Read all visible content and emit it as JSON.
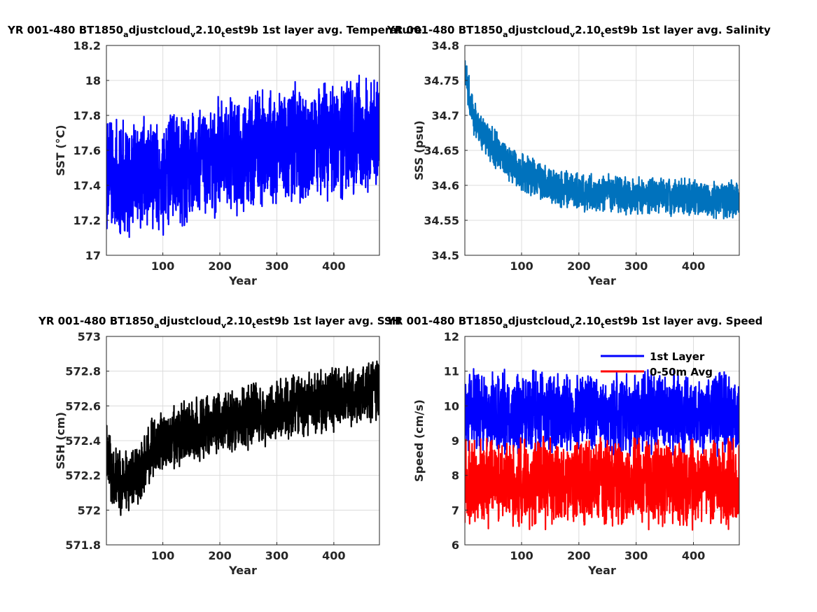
{
  "chart_data": [
    {
      "type": "line",
      "title_parts": [
        "YR 001-480 BT1850",
        "a",
        "djustcloud",
        "v",
        "2.10",
        "t",
        "est9b 1st layer avg. Temperature"
      ],
      "xlabel": "Year",
      "ylabel": "SST (°C)",
      "xlim": [
        1,
        480
      ],
      "ylim": [
        17,
        18.2
      ],
      "xticks": [
        100,
        200,
        300,
        400
      ],
      "yticks": [
        17,
        17.2,
        17.4,
        17.6,
        17.8,
        18,
        18.2
      ],
      "grid": true,
      "series": [
        {
          "color": "#0000ff",
          "x": [
            1,
            40,
            80,
            120,
            160,
            200,
            240,
            280,
            320,
            360,
            400,
            440,
            480
          ],
          "y": [
            17.45,
            17.43,
            17.44,
            17.48,
            17.52,
            17.55,
            17.58,
            17.6,
            17.62,
            17.64,
            17.66,
            17.67,
            17.68
          ],
          "spread": 0.38
        }
      ]
    },
    {
      "type": "line",
      "title_parts": [
        "YR 001-480 BT1850",
        "a",
        "djustcloud",
        "v",
        "2.10",
        "t",
        "est9b 1st layer avg. Salinity"
      ],
      "xlabel": "Year",
      "ylabel": "SSS (psu)",
      "xlim": [
        1,
        480
      ],
      "ylim": [
        34.5,
        34.8
      ],
      "xticks": [
        100,
        200,
        300,
        400
      ],
      "yticks": [
        34.5,
        34.55,
        34.6,
        34.65,
        34.7,
        34.75,
        34.8
      ],
      "grid": true,
      "series": [
        {
          "color": "#0072bd",
          "x": [
            1,
            10,
            25,
            50,
            75,
            100,
            150,
            200,
            250,
            300,
            350,
            400,
            450,
            480
          ],
          "y": [
            34.77,
            34.72,
            34.68,
            34.655,
            34.635,
            34.62,
            34.6,
            34.59,
            34.588,
            34.585,
            34.584,
            34.582,
            34.58,
            34.579
          ],
          "spread": 0.03
        }
      ]
    },
    {
      "type": "line",
      "title_parts": [
        "YR 001-480 BT1850",
        "a",
        "djustcloud",
        "v",
        "2.10",
        "t",
        "est9b 1st layer avg. SSH"
      ],
      "xlabel": "Year",
      "ylabel": "SSH (cm)",
      "xlim": [
        1,
        480
      ],
      "ylim": [
        571.8,
        573
      ],
      "xticks": [
        100,
        200,
        300,
        400
      ],
      "yticks": [
        571.8,
        572,
        572.2,
        572.4,
        572.6,
        572.8,
        573
      ],
      "grid": true,
      "series": [
        {
          "color": "#000000",
          "x": [
            1,
            10,
            30,
            60,
            80,
            120,
            160,
            200,
            240,
            280,
            320,
            360,
            400,
            440,
            480
          ],
          "y": [
            572.4,
            572.2,
            572.15,
            572.2,
            572.35,
            572.42,
            572.47,
            572.5,
            572.53,
            572.56,
            572.59,
            572.61,
            572.64,
            572.66,
            572.7
          ],
          "spread": 0.2
        }
      ]
    },
    {
      "type": "line",
      "title_parts": [
        "YR 001-480 BT1850",
        "a",
        "djustcloud",
        "v",
        "2.10",
        "t",
        "est9b 1st layer avg. Speed"
      ],
      "xlabel": "Year",
      "ylabel": "Speed (cm/s)",
      "xlim": [
        1,
        480
      ],
      "ylim": [
        6,
        12
      ],
      "xticks": [
        100,
        200,
        300,
        400
      ],
      "yticks": [
        6,
        7,
        8,
        9,
        10,
        11,
        12
      ],
      "grid": true,
      "legend_position": "top-right",
      "series": [
        {
          "name": "1st Layer",
          "color": "#0000ff",
          "x": [
            1,
            480
          ],
          "y": [
            9.8,
            9.8
          ],
          "spread": 1.3
        },
        {
          "name": "0-50m Avg",
          "color": "#ff0000",
          "x": [
            1,
            480
          ],
          "y": [
            7.8,
            7.8
          ],
          "spread": 1.4
        }
      ]
    }
  ]
}
